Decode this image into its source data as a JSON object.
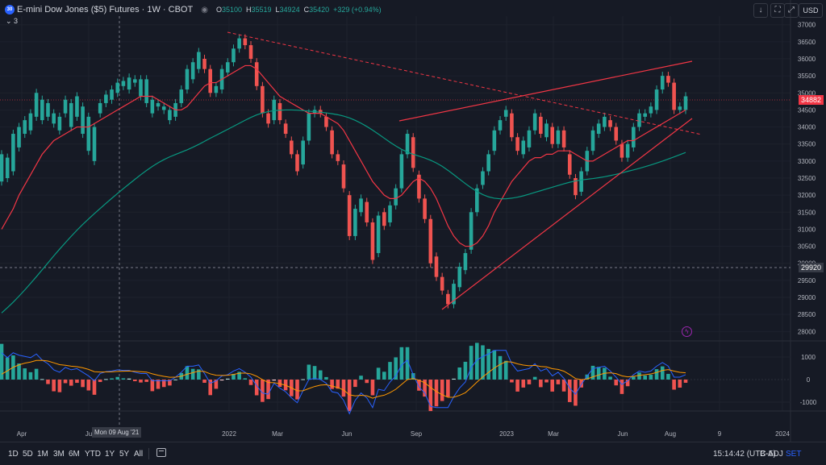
{
  "header": {
    "logo_text": "30",
    "title": "E-mini Dow Jones ($5) Futures · 1W · CBOT",
    "o_label": "O",
    "o_value": "35100",
    "h_label": "H",
    "h_value": "35519",
    "l_label": "L",
    "l_value": "34924",
    "c_label": "C",
    "c_value": "35420",
    "change": "+329 (+0.94%)",
    "indicators_count": "3",
    "currency": "USD"
  },
  "price_axis": {
    "labels": [
      "37000",
      "36500",
      "36000",
      "35500",
      "35000",
      "34500",
      "34000",
      "33500",
      "33000",
      "32500",
      "32000",
      "31500",
      "31000",
      "30500",
      "30000",
      "29500",
      "29000",
      "28500",
      "28000"
    ],
    "last_price": "34882",
    "cross_price": "29920",
    "macd_labels": [
      "1000",
      "0",
      "-1000"
    ]
  },
  "time_axis": {
    "labels": [
      "Apr",
      "Ju",
      "2022",
      "Mar",
      "Jun",
      "Sep",
      "2023",
      "Mar",
      "Jun",
      "Aug",
      "9",
      "2024"
    ],
    "cross_label": "Mon 09 Aug '21"
  },
  "toolbar": {
    "timeframes": [
      "1D",
      "5D",
      "1M",
      "3M",
      "6M",
      "YTD",
      "1Y",
      "5Y",
      "All"
    ],
    "clock": "15:14:42 (UTC-5)",
    "adj": "B-ADJ",
    "set": "SET"
  },
  "colors": {
    "up": "#26a69a",
    "down": "#ef5350",
    "ema_fast": "#f23645",
    "ema_slow": "#089981",
    "trend": "#f23645",
    "macd": "#2962ff",
    "signal": "#ff9800"
  },
  "chart_data": {
    "type": "candlestick",
    "title": "E-mini Dow Jones ($5) Futures",
    "interval": "1W",
    "yrange": [
      27700,
      37300
    ],
    "candles": [
      [
        32400,
        33200
      ],
      [
        32500,
        33100
      ],
      [
        32700,
        33800
      ],
      [
        33400,
        34000
      ],
      [
        33800,
        34200
      ],
      [
        33900,
        34400
      ],
      [
        34300,
        35000
      ],
      [
        34200,
        34800
      ],
      [
        34300,
        34700
      ],
      [
        34100,
        34400
      ],
      [
        33900,
        34300
      ],
      [
        34400,
        34800
      ],
      [
        34000,
        34700
      ],
      [
        34300,
        34900
      ],
      [
        33800,
        34600
      ],
      [
        33300,
        34300
      ],
      [
        33000,
        34000
      ],
      [
        34400,
        34700
      ],
      [
        34700,
        34950
      ],
      [
        34800,
        35100
      ],
      [
        35000,
        35300
      ],
      [
        35200,
        35350
      ],
      [
        35100,
        35450
      ],
      [
        35300,
        35400
      ],
      [
        34900,
        35400
      ],
      [
        34700,
        35400
      ],
      [
        34400,
        34800
      ],
      [
        34600,
        34700
      ],
      [
        34500,
        34600
      ],
      [
        34200,
        34500
      ],
      [
        34300,
        34700
      ],
      [
        34700,
        35100
      ],
      [
        35100,
        35700
      ],
      [
        35400,
        35900
      ],
      [
        35700,
        36200
      ],
      [
        36000,
        35700
      ],
      [
        35700,
        35000
      ],
      [
        35000,
        35200
      ],
      [
        35100,
        35700
      ],
      [
        35600,
        35900
      ],
      [
        35900,
        36300
      ],
      [
        36300,
        36600
      ],
      [
        36600,
        36400
      ],
      [
        36400,
        36000
      ],
      [
        35900,
        35200
      ],
      [
        35200,
        34400
      ],
      [
        34400,
        34100
      ],
      [
        34200,
        34800
      ],
      [
        34700,
        34200
      ],
      [
        34100,
        33800
      ],
      [
        33600,
        33200
      ],
      [
        33200,
        32700
      ],
      [
        32900,
        33600
      ],
      [
        33600,
        34400
      ],
      [
        34400,
        34500
      ],
      [
        34500,
        34400
      ],
      [
        34300,
        34000
      ],
      [
        33900,
        33200
      ],
      [
        33200,
        33000
      ],
      [
        32900,
        32200
      ],
      [
        32000,
        30800
      ],
      [
        30800,
        31600
      ],
      [
        31500,
        31900
      ],
      [
        31800,
        31200
      ],
      [
        31200,
        30100
      ],
      [
        30300,
        31400
      ],
      [
        31500,
        31100
      ],
      [
        31200,
        31700
      ],
      [
        31700,
        32200
      ],
      [
        32200,
        33200
      ],
      [
        33200,
        33800
      ],
      [
        33700,
        32800
      ],
      [
        32600,
        31900
      ],
      [
        31900,
        31300
      ],
      [
        31300,
        30000
      ],
      [
        30200,
        29600
      ],
      [
        29600,
        29200
      ],
      [
        29100,
        28800
      ],
      [
        28800,
        29400
      ],
      [
        29300,
        29900
      ],
      [
        29800,
        30300
      ],
      [
        30400,
        31500
      ],
      [
        31500,
        32200
      ],
      [
        32300,
        32700
      ],
      [
        32700,
        33200
      ],
      [
        33300,
        33900
      ],
      [
        33900,
        34200
      ],
      [
        34300,
        34500
      ],
      [
        34400,
        33700
      ],
      [
        33700,
        33300
      ],
      [
        33200,
        33600
      ],
      [
        33400,
        33900
      ],
      [
        33900,
        34400
      ],
      [
        34300,
        33800
      ],
      [
        33700,
        34100
      ],
      [
        34000,
        33500
      ],
      [
        33500,
        33900
      ],
      [
        33900,
        33400
      ],
      [
        33200,
        32600
      ],
      [
        32500,
        32000
      ],
      [
        32100,
        32700
      ],
      [
        32700,
        33300
      ],
      [
        33300,
        33900
      ],
      [
        33800,
        34100
      ],
      [
        34000,
        34300
      ],
      [
        34200,
        34000
      ],
      [
        34000,
        33600
      ],
      [
        33500,
        33100
      ],
      [
        33100,
        33500
      ],
      [
        33400,
        34000
      ],
      [
        34000,
        34400
      ],
      [
        34300,
        34400
      ],
      [
        34400,
        34600
      ],
      [
        34500,
        35100
      ],
      [
        35100,
        35500
      ],
      [
        35500,
        35300
      ],
      [
        35300,
        34500
      ],
      [
        34500,
        34600
      ],
      [
        34500,
        34900
      ]
    ],
    "ema_fast": [
      31000,
      31300,
      31600,
      32000,
      32300,
      32600,
      32900,
      33200,
      33400,
      33600,
      33700,
      33800,
      33900,
      34000,
      34000,
      34000,
      34100,
      34200,
      34300,
      34400,
      34500,
      34600,
      34700,
      34800,
      34900,
      34900,
      34900,
      34800,
      34700,
      34600,
      34500,
      34500,
      34600,
      34800,
      35000,
      35200,
      35300,
      35300,
      35400,
      35500,
      35600,
      35700,
      35800,
      35800,
      35700,
      35500,
      35300,
      35100,
      34900,
      34800,
      34700,
      34600,
      34500,
      34400,
      34400,
      34400,
      34300,
      34200,
      34100,
      33900,
      33600,
      33300,
      33000,
      32700,
      32400,
      32200,
      32000,
      31900,
      31900,
      32000,
      32200,
      32400,
      32500,
      32400,
      32200,
      31900,
      31500,
      31100,
      30800,
      30600,
      30500,
      30500,
      30600,
      30800,
      31100,
      31500,
      31800,
      32100,
      32400,
      32600,
      32800,
      33000,
      33100,
      33100,
      33200,
      33200,
      33300,
      33300,
      33300,
      33200,
      33100,
      33000,
      33000,
      33100,
      33200,
      33300,
      33400,
      33500,
      33600,
      33600,
      33700,
      33800,
      33900,
      34000,
      34100,
      34200,
      34300,
      34400,
      34500
    ]
  }
}
